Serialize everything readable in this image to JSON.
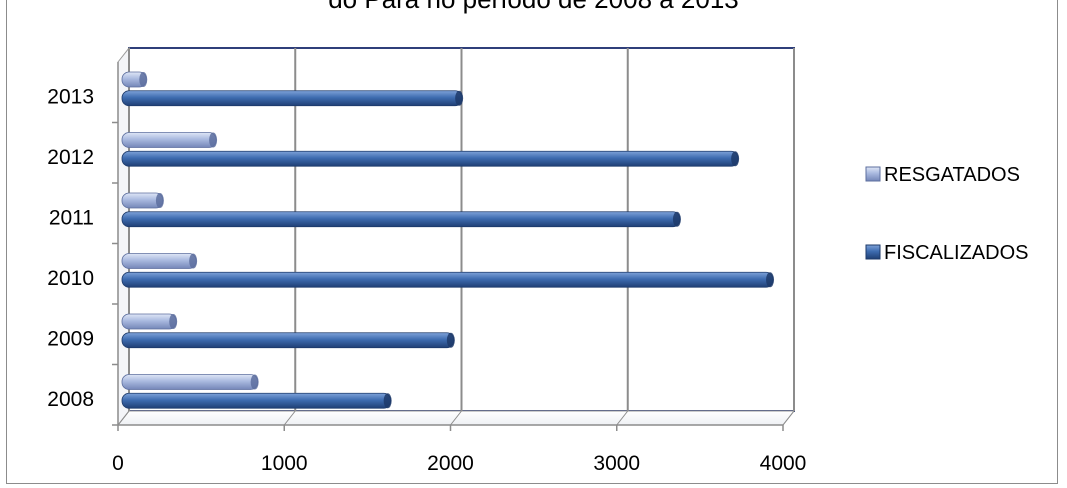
{
  "chart_data": {
    "type": "bar",
    "orientation": "horizontal",
    "title": "do Pará no período de 2008 a 2013",
    "categories": [
      "2008",
      "2009",
      "2010",
      "2011",
      "2012",
      "2013"
    ],
    "series": [
      {
        "name": "RESGATADOS",
        "values": [
          840,
          350,
          470,
          270,
          590,
          170
        ],
        "color": "#a6b7de"
      },
      {
        "name": "FISCALIZADOS",
        "values": [
          1640,
          2020,
          3940,
          3380,
          3730,
          2070
        ],
        "color": "#3e6cb0"
      }
    ],
    "xlim": [
      0,
      4000
    ],
    "xticks": [
      "0",
      "1000",
      "2000",
      "3000",
      "4000"
    ],
    "grid": true,
    "legend_position": "right"
  }
}
